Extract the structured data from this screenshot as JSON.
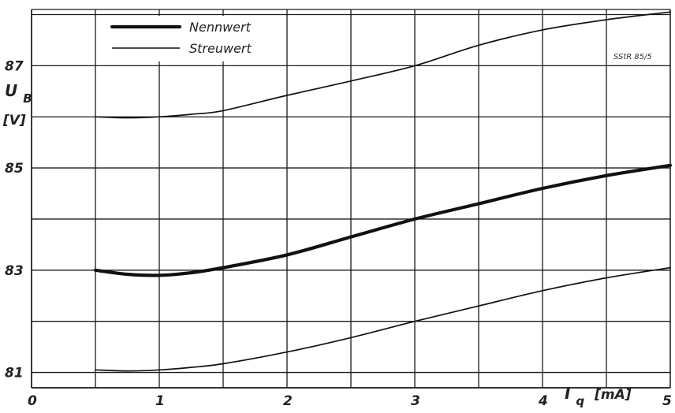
{
  "chart_data": {
    "type": "line",
    "xlim": [
      0,
      5
    ],
    "ylim": [
      80.7,
      88.1
    ],
    "x_ticks": [
      0,
      1,
      2,
      3,
      4,
      5
    ],
    "x_tick_labels": [
      "0",
      "1",
      "2",
      "3",
      "4",
      "5"
    ],
    "y_ticks": [
      81,
      83,
      85,
      87
    ],
    "y_tick_labels": [
      "81",
      "83",
      "85",
      "87"
    ],
    "y_label_symbol": "U",
    "y_label_sub": "B",
    "y_label_unit": "[V]",
    "x_label_symbol": "I",
    "x_label_sub": "q",
    "x_label_unit": "[mA]",
    "grid": true,
    "legend_position": "top-left",
    "annotation": "SStR 85/5",
    "series": [
      {
        "name": "Streuwert",
        "style": "thin",
        "x": [
          0.5,
          0.75,
          1.0,
          1.25,
          1.5,
          2.0,
          2.5,
          3.0,
          3.5,
          4.0,
          4.5,
          5.0
        ],
        "y": [
          86.0,
          85.98,
          86.0,
          86.05,
          86.12,
          86.42,
          86.7,
          87.0,
          87.4,
          87.7,
          87.9,
          88.05
        ]
      },
      {
        "name": "Nennwert",
        "style": "thick",
        "x": [
          0.5,
          0.75,
          1.0,
          1.25,
          1.5,
          2.0,
          2.5,
          3.0,
          3.5,
          4.0,
          4.5,
          5.0
        ],
        "y": [
          83.0,
          82.92,
          82.9,
          82.95,
          83.05,
          83.3,
          83.65,
          84.0,
          84.3,
          84.6,
          84.85,
          85.05
        ]
      },
      {
        "name": "Streuwert",
        "style": "thin",
        "x": [
          0.5,
          0.75,
          1.0,
          1.25,
          1.5,
          2.0,
          2.5,
          3.0,
          3.5,
          4.0,
          4.5,
          5.0
        ],
        "y": [
          81.05,
          81.03,
          81.05,
          81.1,
          81.17,
          81.4,
          81.68,
          82.0,
          82.3,
          82.6,
          82.85,
          83.05
        ]
      }
    ],
    "legend": [
      {
        "label": "Nennwert",
        "style": "thick"
      },
      {
        "label": "Streuwert",
        "style": "thin"
      }
    ],
    "colors": {
      "line": "#111111",
      "grid": "#1a1a1a",
      "text": "#222222"
    }
  }
}
